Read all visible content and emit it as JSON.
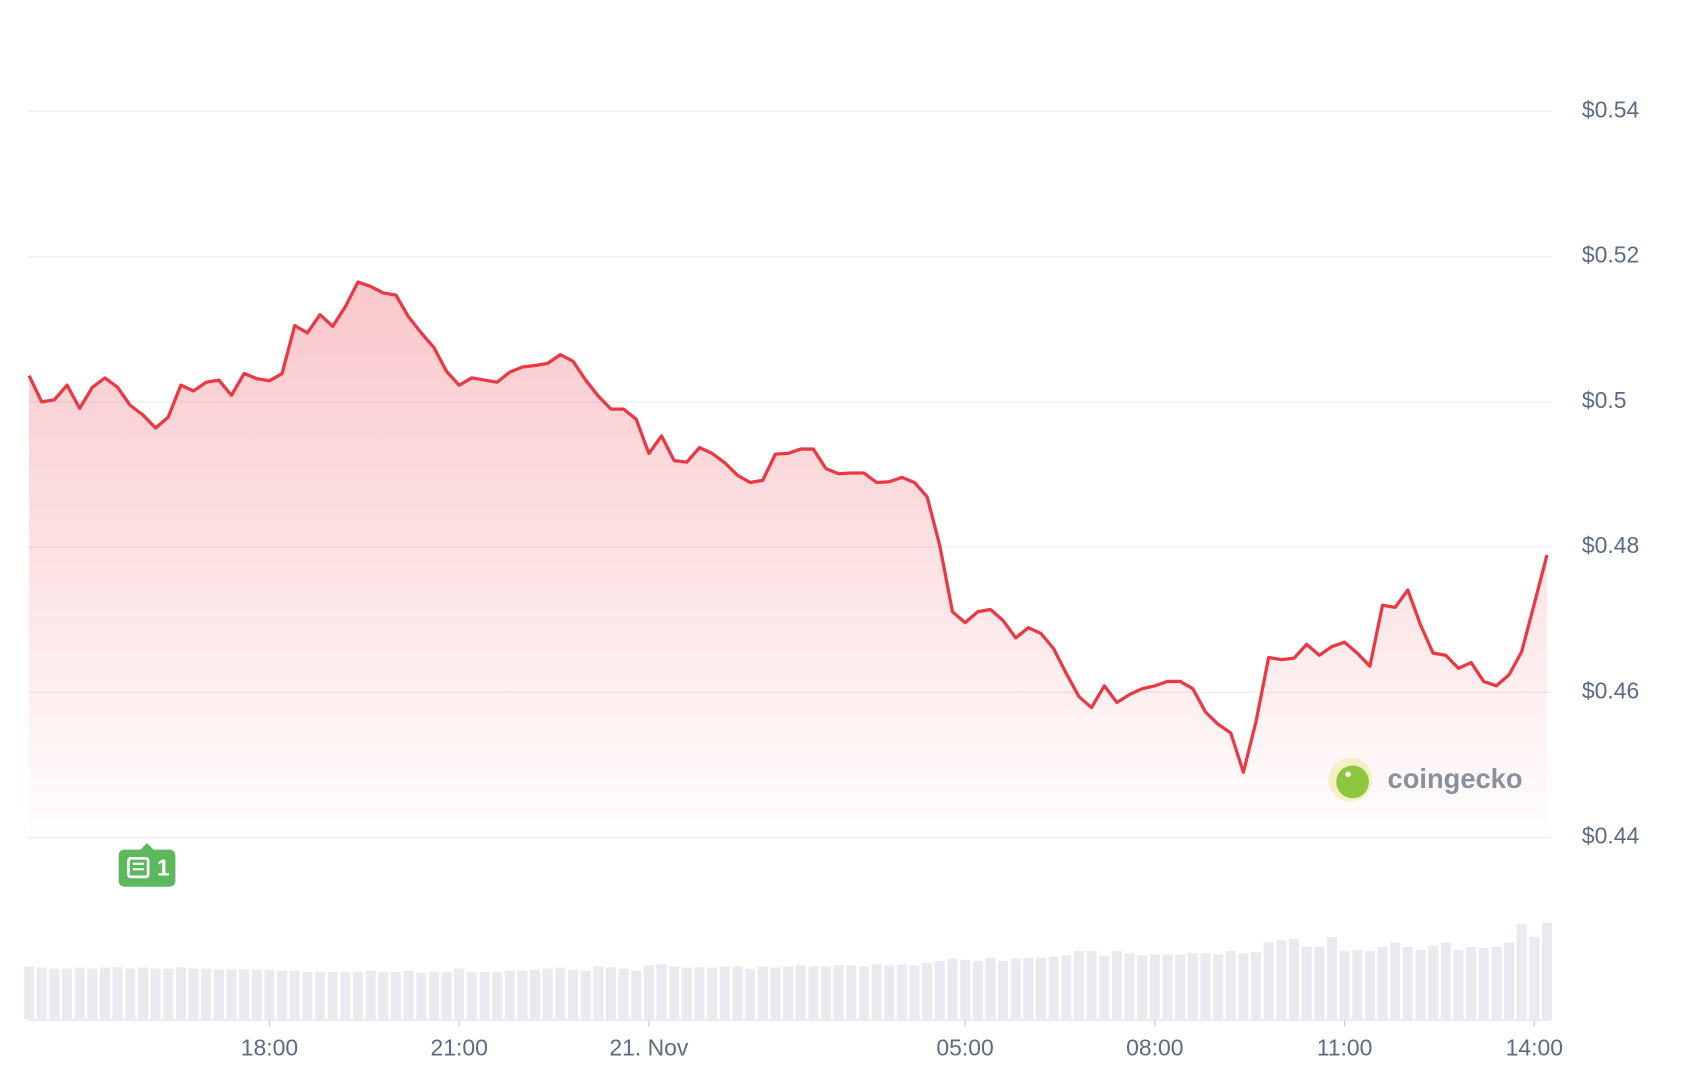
{
  "chart_data": {
    "type": "line",
    "x": [
      14.2,
      14.4,
      14.6,
      14.8,
      15,
      15.2,
      15.4,
      15.6,
      15.8,
      16,
      16.2,
      16.4,
      16.6,
      16.8,
      17,
      17.2,
      17.4,
      17.6,
      17.8,
      18,
      18.2,
      18.4,
      18.6,
      18.8,
      19,
      19.2,
      19.4,
      19.6,
      19.8,
      20,
      20.2,
      20.4,
      20.6,
      20.8,
      21,
      21.2,
      21.4,
      21.6,
      21.8,
      22,
      22.2,
      22.4,
      22.6,
      22.8,
      23,
      23.2,
      23.4,
      23.6,
      23.8,
      24,
      24.2,
      24.4,
      24.6,
      24.8,
      25,
      25.2,
      25.4,
      25.6,
      25.8,
      26,
      26.2,
      26.4,
      26.6,
      26.8,
      27,
      27.2,
      27.4,
      27.6,
      27.8,
      28,
      28.2,
      28.4,
      28.6,
      28.8,
      29,
      29.2,
      29.4,
      29.6,
      29.8,
      30,
      30.2,
      30.4,
      30.6,
      30.8,
      31,
      31.2,
      31.4,
      31.6,
      31.8,
      32,
      32.2,
      32.4,
      32.6,
      32.8,
      33,
      33.2,
      33.4,
      33.6,
      33.8,
      34,
      34.2,
      34.4,
      34.6,
      34.8,
      35,
      35.2,
      35.4,
      35.6,
      35.8,
      36,
      36.2,
      36.4,
      36.6,
      36.8,
      37,
      37.2,
      37.4,
      37.6,
      37.8,
      38,
      38.2
    ],
    "series": [
      {
        "color": "#ea3943",
        "values": [
          0.5036,
          0.5,
          0.5003,
          0.5023,
          0.4991,
          0.502,
          0.5033,
          0.502,
          0.4995,
          0.4982,
          0.4964,
          0.4979,
          0.5023,
          0.5015,
          0.5027,
          0.503,
          0.5009,
          0.5039,
          0.5032,
          0.5029,
          0.5039,
          0.5105,
          0.5095,
          0.512,
          0.5104,
          0.5131,
          0.5165,
          0.5159,
          0.515,
          0.5147,
          0.5117,
          0.5095,
          0.5075,
          0.5042,
          0.5023,
          0.5033,
          0.503,
          0.5027,
          0.5041,
          0.5048,
          0.505,
          0.5053,
          0.5065,
          0.5056,
          0.503,
          0.5008,
          0.499,
          0.499,
          0.4976,
          0.4929,
          0.4953,
          0.4919,
          0.4917,
          0.4937,
          0.4929,
          0.4916,
          0.4899,
          0.4889,
          0.4892,
          0.4928,
          0.4929,
          0.4935,
          0.4935,
          0.4908,
          0.4901,
          0.4902,
          0.4902,
          0.4889,
          0.489,
          0.4896,
          0.4889,
          0.4869,
          0.4802,
          0.4711,
          0.4696,
          0.4711,
          0.4714,
          0.4699,
          0.4675,
          0.4689,
          0.4681,
          0.466,
          0.4626,
          0.4594,
          0.4579,
          0.4609,
          0.4586,
          0.4597,
          0.4605,
          0.4609,
          0.4615,
          0.4615,
          0.4605,
          0.4573,
          0.4556,
          0.4544,
          0.449,
          0.456,
          0.4648,
          0.4645,
          0.4647,
          0.4666,
          0.4651,
          0.4663,
          0.4669,
          0.4654,
          0.4636,
          0.472,
          0.4717,
          0.4741,
          0.4693,
          0.4654,
          0.4651,
          0.4633,
          0.4641,
          0.4615,
          0.4609,
          0.4624,
          0.4656,
          0.4722,
          0.4789
        ]
      },
      {
        "type": "bar",
        "axis": "y2",
        "color": "#e8eaef",
        "values": [
          48,
          47,
          46,
          46,
          47,
          46,
          47,
          47,
          46,
          47,
          46,
          46,
          47,
          46,
          46,
          45,
          45,
          45,
          45,
          45,
          44,
          44,
          43,
          43,
          43,
          43,
          43,
          44,
          43,
          43,
          44,
          42,
          43,
          43,
          46,
          43,
          43,
          43,
          44,
          44,
          45,
          46,
          47,
          45,
          44,
          48,
          47,
          46,
          44,
          49,
          50,
          48,
          47,
          47,
          47,
          48,
          48,
          46,
          48,
          47,
          48,
          49,
          48,
          48,
          49,
          49,
          48,
          50,
          49,
          50,
          49,
          51,
          53,
          55,
          54,
          53,
          56,
          53,
          55,
          56,
          56,
          57,
          58,
          62,
          62,
          58,
          62,
          60,
          58,
          59,
          59,
          59,
          60,
          60,
          59,
          62,
          60,
          61,
          70,
          72,
          73,
          66,
          66,
          75,
          62,
          63,
          62,
          66,
          70,
          66,
          63,
          67,
          70,
          63,
          66,
          65,
          66,
          70,
          87,
          75,
          88
        ]
      }
    ],
    "xlim": [
      14.2,
      38.2
    ],
    "xticks": [
      {
        "value": 18,
        "label": "18:00"
      },
      {
        "value": 21,
        "label": "21:00"
      },
      {
        "value": 24,
        "label": "21. Nov"
      },
      {
        "value": 29,
        "label": "05:00"
      },
      {
        "value": 32,
        "label": "08:00"
      },
      {
        "value": 35,
        "label": "11:00"
      },
      {
        "value": 38,
        "label": "14:00"
      }
    ],
    "ylim": [
      0.44,
      0.54
    ],
    "yticks": [
      {
        "value": 0.44,
        "label": "$0.44"
      },
      {
        "value": 0.46,
        "label": "$0.46"
      },
      {
        "value": 0.48,
        "label": "$0.48"
      },
      {
        "value": 0.5,
        "label": "$0.5"
      },
      {
        "value": 0.52,
        "label": "$0.52"
      },
      {
        "value": 0.54,
        "label": "$0.54"
      }
    ],
    "y2lim": [
      0,
      100
    ],
    "grid": true,
    "annotation": "1",
    "watermark": "coingecko"
  }
}
